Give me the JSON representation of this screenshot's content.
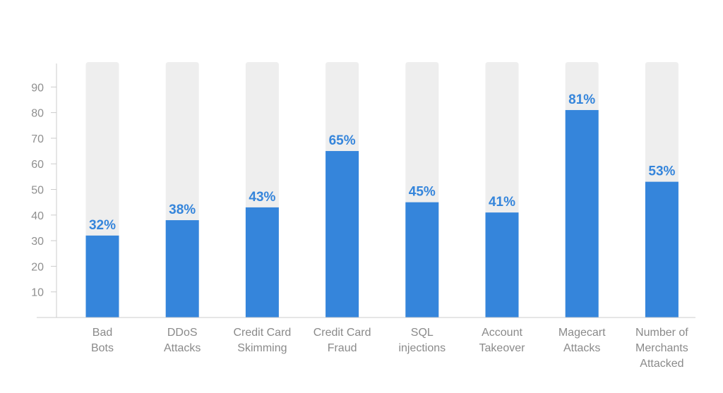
{
  "chart_data": {
    "type": "bar",
    "title": "",
    "xlabel": "",
    "ylabel": "",
    "categories": [
      [
        "Bad",
        "Bots"
      ],
      [
        "DDoS",
        "Attacks"
      ],
      [
        "Credit Card",
        "Skimming"
      ],
      [
        "Credit Card",
        "Fraud"
      ],
      [
        "SQL",
        "injections"
      ],
      [
        "Account",
        "Takeover"
      ],
      [
        "Magecart",
        "Attacks"
      ],
      [
        "Number of",
        "Merchants",
        "Attacked"
      ]
    ],
    "values": [
      32,
      38,
      43,
      65,
      45,
      41,
      81,
      53
    ],
    "data_labels": [
      "32%",
      "38%",
      "43%",
      "65%",
      "45%",
      "41%",
      "81%",
      "53%"
    ],
    "ylim": [
      0,
      100
    ],
    "yticks": [
      10,
      20,
      30,
      40,
      50,
      60,
      70,
      80,
      90
    ],
    "grid": false,
    "background_bars": true,
    "colors": {
      "bar": "#3585db",
      "track": "#eeeeee",
      "data_label": "#3585db",
      "axis": "#cccccc",
      "tick_label": "#8f8f8f",
      "category_label": "#8a8a8a"
    }
  }
}
